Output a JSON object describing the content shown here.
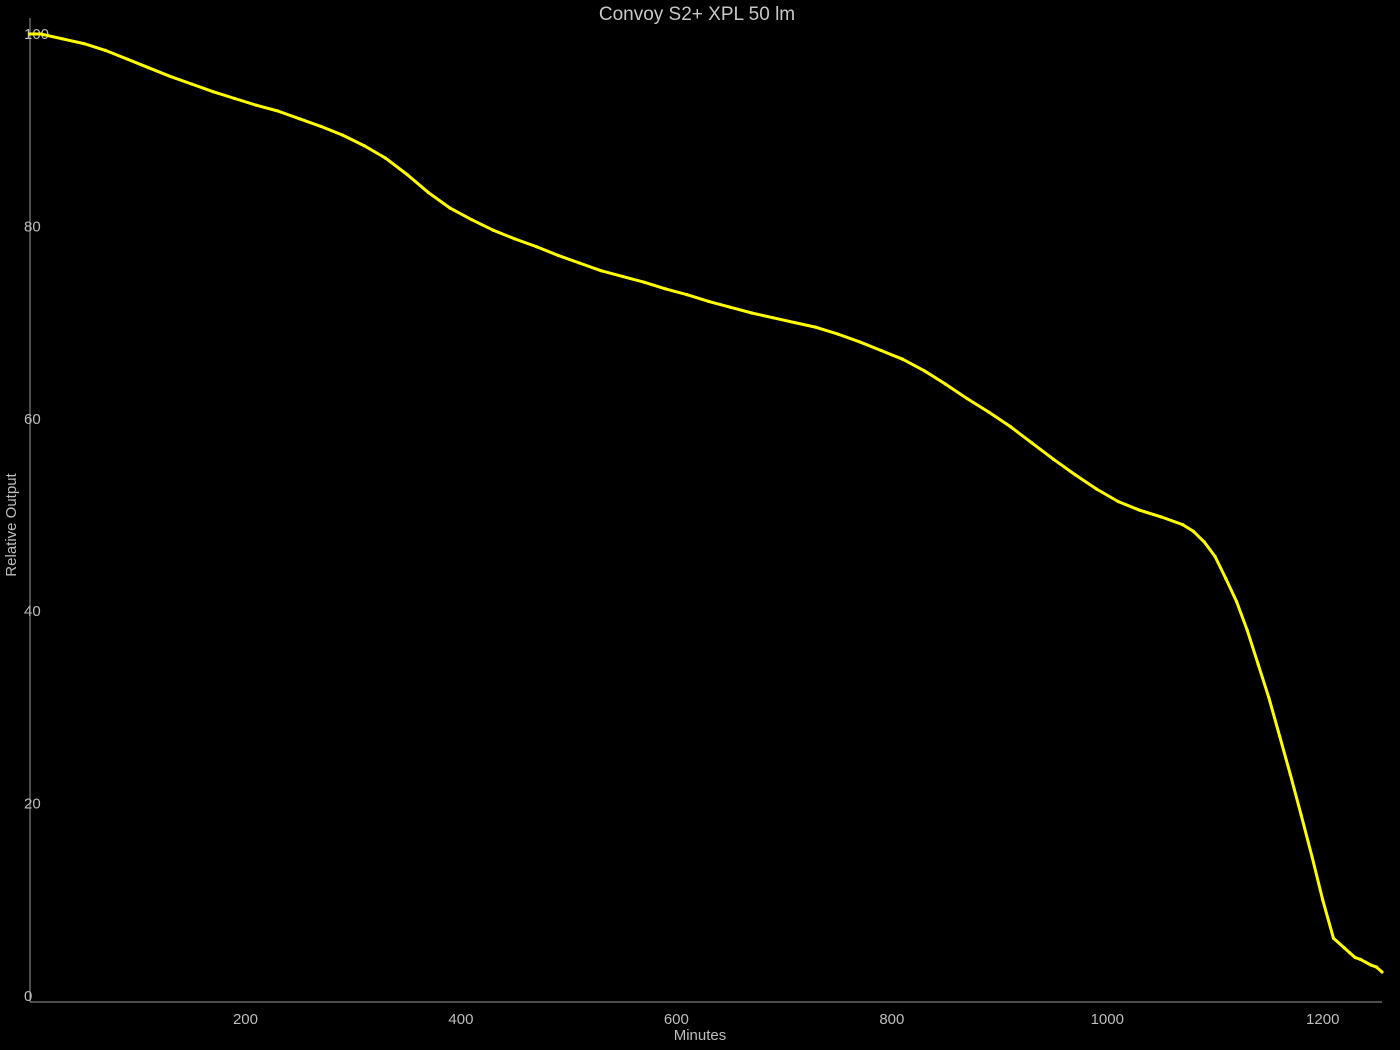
{
  "chart_data": {
    "type": "line",
    "title": "Convoy S2+ XPL 50 lm",
    "xlabel": "Minutes",
    "ylabel": "Relative Output",
    "xlim": [
      0,
      1255
    ],
    "ylim": [
      0,
      100
    ],
    "xticks": [
      200,
      400,
      600,
      800,
      1000,
      1200
    ],
    "yticks": [
      0,
      20,
      40,
      60,
      80,
      100
    ],
    "grid": false,
    "line_color": "#ffff00",
    "background": "#000000",
    "series": [
      {
        "x": [
          0,
          10,
          30,
          50,
          70,
          90,
          110,
          130,
          150,
          170,
          190,
          210,
          230,
          250,
          270,
          290,
          310,
          330,
          350,
          370,
          390,
          410,
          430,
          450,
          470,
          490,
          510,
          530,
          550,
          570,
          590,
          610,
          630,
          650,
          670,
          690,
          710,
          730,
          750,
          770,
          790,
          810,
          830,
          850,
          870,
          890,
          910,
          930,
          950,
          970,
          990,
          1010,
          1030,
          1050,
          1070,
          1080,
          1090,
          1100,
          1110,
          1120,
          1130,
          1140,
          1150,
          1160,
          1170,
          1180,
          1190,
          1200,
          1210,
          1220,
          1225,
          1230,
          1235,
          1240,
          1245,
          1250,
          1255
        ],
        "y": [
          100,
          100,
          99.5,
          99,
          98.3,
          97.4,
          96.5,
          95.6,
          94.8,
          94,
          93.3,
          92.6,
          92,
          91.2,
          90.4,
          89.5,
          88.4,
          87.1,
          85.4,
          83.5,
          81.9,
          80.7,
          79.6,
          78.7,
          77.9,
          77,
          76.2,
          75.4,
          74.8,
          74.2,
          73.5,
          72.9,
          72.2,
          71.6,
          71,
          70.5,
          70,
          69.5,
          68.8,
          68,
          67.1,
          66.2,
          65,
          63.6,
          62.1,
          60.7,
          59.2,
          57.5,
          55.8,
          54.2,
          52.7,
          51.4,
          50.5,
          49.8,
          49,
          48.3,
          47.2,
          45.7,
          43.4,
          41,
          38,
          34.5,
          31,
          27,
          23,
          18.8,
          14.5,
          10,
          6,
          5,
          4.5,
          4,
          3.8,
          3.5,
          3.2,
          3,
          2.5
        ]
      }
    ]
  }
}
